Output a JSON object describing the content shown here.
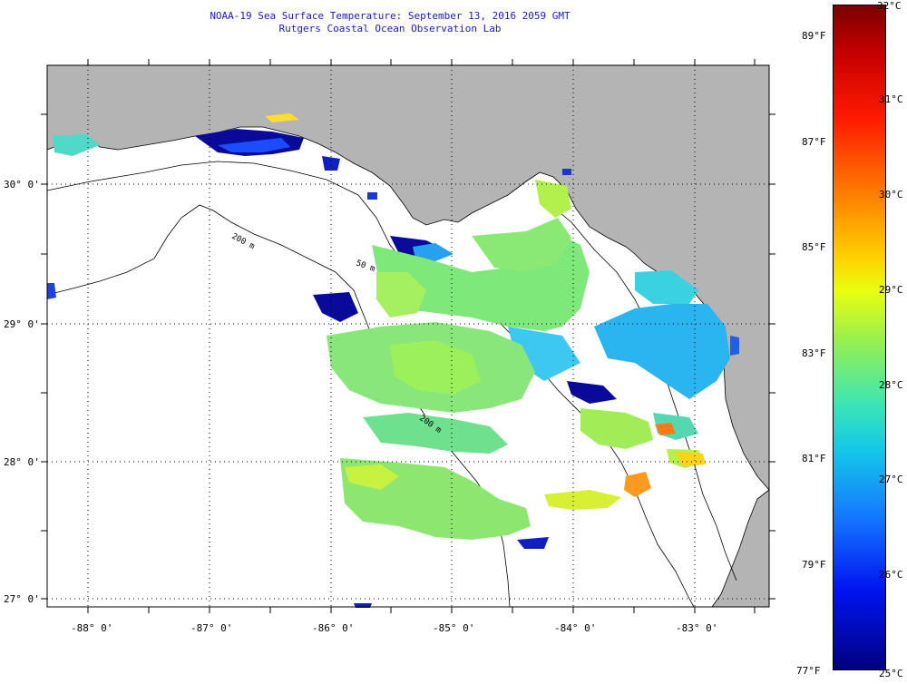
{
  "header": {
    "title_line1": "NOAA-19 Sea Surface Temperature:  September 13, 2016 2059 GMT",
    "title_line2": "Rutgers Coastal Ocean Observation Lab"
  },
  "map": {
    "lat_labels": [
      "30° 0'",
      "29° 0'",
      "28° 0'",
      "27° 0'"
    ],
    "lon_labels": [
      "-88° 0'",
      "-87° 0'",
      "-86° 0'",
      "-85° 0'",
      "-84° 0'",
      "-83° 0'"
    ],
    "isobath_labels": [
      "200 m",
      "50 m"
    ],
    "colors": {
      "land": "#b4b4b4",
      "ocean_nodata": "#ffffff",
      "grid": "#000000"
    }
  },
  "colorbar": {
    "celsius_labels": [
      "32°C",
      "31°C",
      "30°C",
      "29°C",
      "28°C",
      "27°C",
      "26°C",
      "25°C"
    ],
    "fahrenheit_labels": [
      "89°F",
      "87°F",
      "85°F",
      "83°F",
      "81°F",
      "79°F",
      "77°F"
    ]
  }
}
